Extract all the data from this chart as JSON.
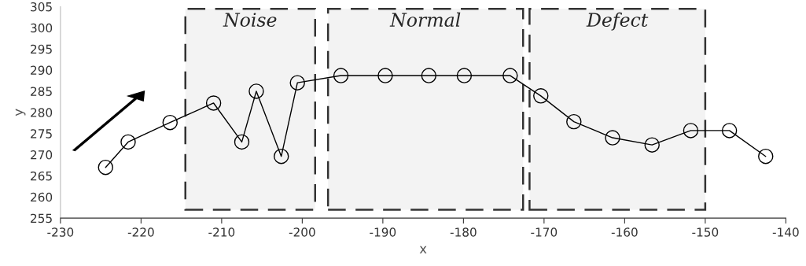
{
  "chart_data": {
    "type": "line",
    "xlabel": "x",
    "ylabel": "y",
    "x": [
      -224.4,
      -221.6,
      -216.4,
      -211,
      -207.5,
      -205.7,
      -202.6,
      -200.6,
      -195.2,
      -189.7,
      -184.3,
      -179.9,
      -174.2,
      -170.4,
      -166.3,
      -161.5,
      -156.6,
      -151.8,
      -147,
      -142.5
    ],
    "values": [
      267,
      273,
      277.6,
      282.2,
      273,
      285,
      269.6,
      287,
      288.7,
      288.7,
      288.7,
      288.7,
      288.7,
      283.9,
      277.8,
      274,
      272.3,
      275.7,
      275.7,
      269.6
    ],
    "color": "#000000",
    "marker": "circle",
    "line_style": "solid",
    "grid": false,
    "legend": false,
    "xlim": [
      -230,
      -140
    ],
    "xticks": [
      -230,
      -220,
      -210,
      -200,
      -190,
      -180,
      -170,
      -160,
      -150,
      -140
    ],
    "ylim": [
      255,
      305
    ],
    "yticks": [
      255,
      260,
      265,
      270,
      275,
      280,
      285,
      290,
      295,
      300,
      305
    ],
    "bands": [
      {
        "axis": "x",
        "from": -214.5,
        "to": -198.4,
        "label": "Noise",
        "color": "#333333"
      },
      {
        "axis": "x",
        "from": -196.8,
        "to": -172.6,
        "label": "Normal",
        "color": "#333333"
      },
      {
        "axis": "x",
        "from": -171.8,
        "to": -150,
        "label": "Defect",
        "color": "#333333"
      }
    ]
  }
}
